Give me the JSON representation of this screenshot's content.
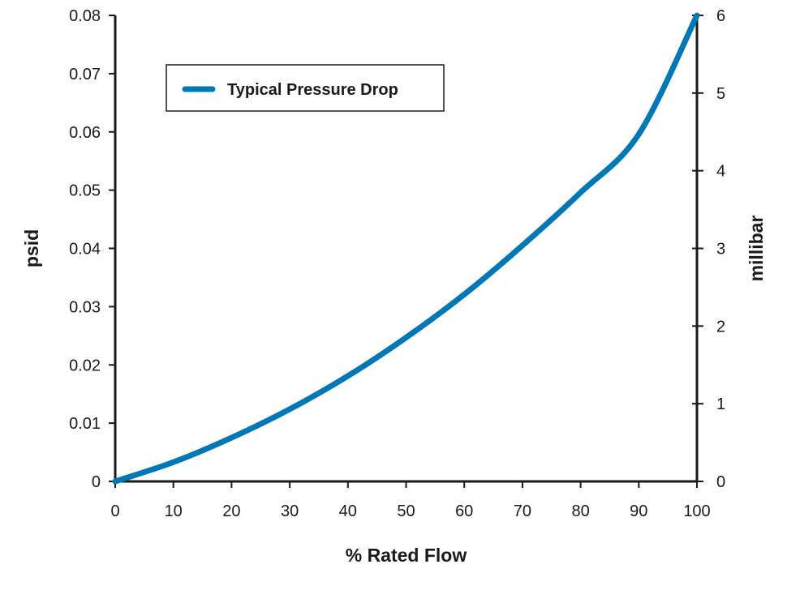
{
  "chart_data": {
    "type": "line",
    "xlabel": "% Rated Flow",
    "ylabel": "psid",
    "y2label": "millibar",
    "xlim": [
      0,
      100
    ],
    "ylim": [
      0,
      0.08
    ],
    "y2lim": [
      0,
      6
    ],
    "x_ticks": [
      "0",
      "10",
      "20",
      "30",
      "40",
      "50",
      "60",
      "70",
      "80",
      "90",
      "100"
    ],
    "y_ticks": [
      "0",
      "0.01",
      "0.02",
      "0.03",
      "0.04",
      "0.05",
      "0.06",
      "0.07",
      "0.08"
    ],
    "y2_ticks": [
      "0",
      "1",
      "2",
      "3",
      "4",
      "5",
      "6"
    ],
    "grid": false,
    "legend_position": "top-left",
    "series": [
      {
        "name": "Typical Pressure Drop",
        "color": "#0077b6",
        "x": [
          0,
          10,
          20,
          30,
          40,
          50,
          60,
          70,
          80,
          90,
          100
        ],
        "y": [
          0,
          0.0033,
          0.0075,
          0.0124,
          0.0181,
          0.0247,
          0.0321,
          0.0405,
          0.0496,
          0.0596,
          0.08
        ]
      }
    ]
  }
}
